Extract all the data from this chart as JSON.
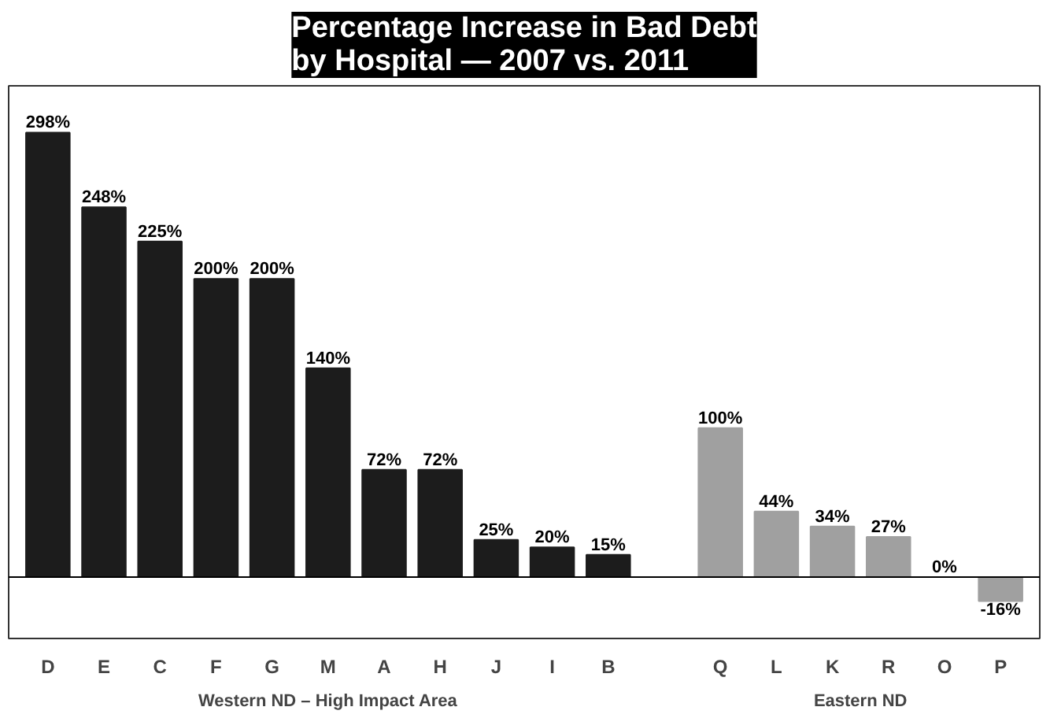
{
  "chart_data": {
    "type": "bar",
    "title": "Percentage Increase in Bad Debt\nby Hospital — 2007 vs. 2011",
    "categories": [
      "D",
      "E",
      "C",
      "F",
      "G",
      "M",
      "A",
      "H",
      "J",
      "I",
      "B",
      null,
      "Q",
      "L",
      "K",
      "R",
      "O",
      "P"
    ],
    "values": [
      298,
      248,
      225,
      200,
      200,
      140,
      72,
      72,
      25,
      20,
      15,
      null,
      100,
      44,
      34,
      27,
      0,
      -16
    ],
    "value_labels": [
      "298%",
      "248%",
      "225%",
      "200%",
      "200%",
      "140%",
      "72%",
      "72%",
      "25%",
      "20%",
      "15%",
      null,
      "100%",
      "44%",
      "34%",
      "27%",
      "0%",
      "-16%"
    ],
    "colors": [
      "#1c1c1c",
      "#1c1c1c",
      "#1c1c1c",
      "#1c1c1c",
      "#1c1c1c",
      "#1c1c1c",
      "#1c1c1c",
      "#1c1c1c",
      "#1c1c1c",
      "#1c1c1c",
      "#1c1c1c",
      "#ffffff",
      "#a0a0a0",
      "#a0a0a0",
      "#a0a0a0",
      "#a0a0a0",
      "#a0a0a0",
      "#a0a0a0"
    ],
    "annotations": [
      "Western ND – High Impact Area",
      "Eastern ND"
    ],
    "grid": false
  }
}
